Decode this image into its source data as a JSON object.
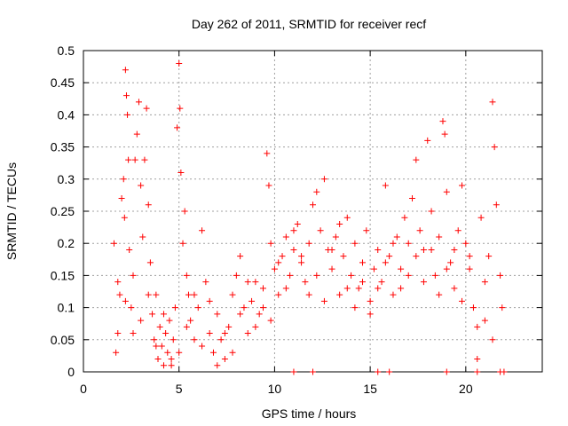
{
  "chart_data": {
    "type": "scatter",
    "title": "Day 262 of 2011, SRMTID for receiver recf",
    "xlabel": "GPS time / hours",
    "ylabel": "SRMTID / TECUs",
    "xlim": [
      0,
      24
    ],
    "ylim": [
      0,
      0.5
    ],
    "x_ticks": [
      "0",
      "5",
      "10",
      "15",
      "20"
    ],
    "y_ticks": [
      "0",
      "0.05",
      "0.1",
      "0.15",
      "0.2",
      "0.25",
      "0.3",
      "0.35",
      "0.4",
      "0.45",
      "0.5"
    ],
    "grid": true,
    "marker": "plus",
    "color": "#ff0000",
    "series": [
      {
        "name": "",
        "points": [
          [
            1.6,
            0.2
          ],
          [
            1.7,
            0.03
          ],
          [
            1.8,
            0.14
          ],
          [
            1.9,
            0.12
          ],
          [
            2.0,
            0.27
          ],
          [
            2.1,
            0.3
          ],
          [
            2.15,
            0.24
          ],
          [
            2.2,
            0.47
          ],
          [
            2.25,
            0.43
          ],
          [
            2.3,
            0.4
          ],
          [
            2.35,
            0.33
          ],
          [
            2.4,
            0.19
          ],
          [
            2.5,
            0.1
          ],
          [
            2.6,
            0.06
          ],
          [
            2.7,
            0.33
          ],
          [
            2.8,
            0.37
          ],
          [
            2.9,
            0.42
          ],
          [
            3.0,
            0.29
          ],
          [
            3.1,
            0.21
          ],
          [
            3.2,
            0.33
          ],
          [
            3.3,
            0.41
          ],
          [
            3.4,
            0.26
          ],
          [
            3.5,
            0.17
          ],
          [
            3.6,
            0.09
          ],
          [
            3.7,
            0.05
          ],
          [
            3.8,
            0.12
          ],
          [
            3.9,
            0.02
          ],
          [
            4.0,
            0.07
          ],
          [
            4.1,
            0.04
          ],
          [
            4.2,
            0.01
          ],
          [
            4.3,
            0.06
          ],
          [
            4.4,
            0.03
          ],
          [
            4.5,
            0.08
          ],
          [
            4.6,
            0.02
          ],
          [
            4.7,
            0.05
          ],
          [
            4.8,
            0.1
          ],
          [
            4.9,
            0.38
          ],
          [
            5.0,
            0.48
          ],
          [
            5.05,
            0.41
          ],
          [
            5.1,
            0.31
          ],
          [
            5.2,
            0.2
          ],
          [
            5.3,
            0.25
          ],
          [
            5.4,
            0.15
          ],
          [
            5.5,
            0.12
          ],
          [
            5.6,
            0.08
          ],
          [
            5.8,
            0.05
          ],
          [
            6.0,
            0.1
          ],
          [
            6.2,
            0.22
          ],
          [
            6.4,
            0.14
          ],
          [
            6.6,
            0.06
          ],
          [
            6.8,
            0.03
          ],
          [
            7.0,
            0.09
          ],
          [
            7.2,
            0.05
          ],
          [
            7.4,
            0.02
          ],
          [
            7.6,
            0.07
          ],
          [
            7.8,
            0.12
          ],
          [
            8.0,
            0.15
          ],
          [
            8.2,
            0.18
          ],
          [
            8.4,
            0.1
          ],
          [
            8.6,
            0.06
          ],
          [
            8.8,
            0.11
          ],
          [
            9.0,
            0.14
          ],
          [
            9.2,
            0.09
          ],
          [
            9.4,
            0.13
          ],
          [
            9.6,
            0.34
          ],
          [
            9.7,
            0.29
          ],
          [
            9.8,
            0.2
          ],
          [
            10.0,
            0.16
          ],
          [
            10.2,
            0.12
          ],
          [
            10.4,
            0.18
          ],
          [
            10.6,
            0.21
          ],
          [
            10.8,
            0.15
          ],
          [
            11.0,
            0.19
          ],
          [
            11.2,
            0.23
          ],
          [
            11.4,
            0.17
          ],
          [
            11.6,
            0.14
          ],
          [
            11.8,
            0.2
          ],
          [
            12.0,
            0.26
          ],
          [
            12.2,
            0.28
          ],
          [
            12.4,
            0.22
          ],
          [
            12.6,
            0.3
          ],
          [
            12.8,
            0.19
          ],
          [
            13.0,
            0.16
          ],
          [
            13.2,
            0.21
          ],
          [
            13.4,
            0.12
          ],
          [
            13.6,
            0.18
          ],
          [
            13.8,
            0.24
          ],
          [
            14.0,
            0.15
          ],
          [
            14.2,
            0.2
          ],
          [
            14.4,
            0.13
          ],
          [
            14.6,
            0.17
          ],
          [
            14.8,
            0.22
          ],
          [
            15.0,
            0.11
          ],
          [
            15.2,
            0.16
          ],
          [
            15.4,
            0.19
          ],
          [
            15.6,
            0.14
          ],
          [
            15.8,
            0.29
          ],
          [
            16.0,
            0.18
          ],
          [
            16.2,
            0.12
          ],
          [
            16.4,
            0.21
          ],
          [
            16.6,
            0.16
          ],
          [
            16.8,
            0.24
          ],
          [
            17.0,
            0.2
          ],
          [
            17.2,
            0.27
          ],
          [
            17.4,
            0.33
          ],
          [
            17.6,
            0.22
          ],
          [
            17.8,
            0.19
          ],
          [
            18.0,
            0.36
          ],
          [
            18.2,
            0.25
          ],
          [
            18.4,
            0.15
          ],
          [
            18.6,
            0.21
          ],
          [
            18.8,
            0.39
          ],
          [
            18.9,
            0.37
          ],
          [
            19.0,
            0.28
          ],
          [
            19.2,
            0.17
          ],
          [
            19.4,
            0.13
          ],
          [
            19.6,
            0.22
          ],
          [
            19.8,
            0.29
          ],
          [
            20.0,
            0.2
          ],
          [
            20.2,
            0.16
          ],
          [
            20.4,
            0.1
          ],
          [
            20.6,
            0.07
          ],
          [
            20.8,
            0.24
          ],
          [
            21.0,
            0.14
          ],
          [
            21.2,
            0.18
          ],
          [
            21.4,
            0.42
          ],
          [
            21.5,
            0.35
          ],
          [
            21.6,
            0.26
          ],
          [
            21.8,
            0.15
          ],
          [
            21.9,
            0.1
          ],
          [
            1.8,
            0.06
          ],
          [
            2.2,
            0.11
          ],
          [
            2.6,
            0.15
          ],
          [
            3.0,
            0.08
          ],
          [
            3.4,
            0.12
          ],
          [
            3.8,
            0.04
          ],
          [
            4.2,
            0.09
          ],
          [
            4.6,
            0.01
          ],
          [
            5.0,
            0.03
          ],
          [
            5.4,
            0.07
          ],
          [
            5.8,
            0.12
          ],
          [
            6.2,
            0.04
          ],
          [
            6.6,
            0.11
          ],
          [
            7.0,
            0.01
          ],
          [
            7.4,
            0.06
          ],
          [
            7.8,
            0.03
          ],
          [
            8.2,
            0.09
          ],
          [
            8.6,
            0.14
          ],
          [
            9.0,
            0.07
          ],
          [
            9.4,
            0.1
          ],
          [
            9.8,
            0.08
          ],
          [
            10.2,
            0.17
          ],
          [
            10.6,
            0.13
          ],
          [
            11.0,
            0.22
          ],
          [
            11.4,
            0.18
          ],
          [
            11.8,
            0.12
          ],
          [
            12.2,
            0.15
          ],
          [
            12.6,
            0.11
          ],
          [
            13.0,
            0.19
          ],
          [
            13.4,
            0.23
          ],
          [
            13.8,
            0.13
          ],
          [
            14.2,
            0.1
          ],
          [
            14.6,
            0.14
          ],
          [
            15.0,
            0.09
          ],
          [
            15.4,
            0.13
          ],
          [
            15.8,
            0.17
          ],
          [
            16.2,
            0.2
          ],
          [
            16.6,
            0.13
          ],
          [
            17.0,
            0.15
          ],
          [
            17.4,
            0.18
          ],
          [
            17.8,
            0.14
          ],
          [
            18.2,
            0.19
          ],
          [
            18.6,
            0.12
          ],
          [
            19.0,
            0.16
          ],
          [
            19.4,
            0.19
          ],
          [
            19.8,
            0.11
          ],
          [
            20.2,
            0.18
          ],
          [
            20.6,
            0.02
          ],
          [
            21.0,
            0.08
          ],
          [
            21.4,
            0.05
          ],
          [
            11.0,
            0.0
          ],
          [
            15.4,
            0.0
          ],
          [
            19.0,
            0.0
          ],
          [
            20.6,
            0.0
          ],
          [
            21.8,
            0.0
          ],
          [
            22.0,
            0.0
          ],
          [
            12.0,
            0.0
          ],
          [
            16.0,
            0.0
          ]
        ]
      }
    ]
  }
}
